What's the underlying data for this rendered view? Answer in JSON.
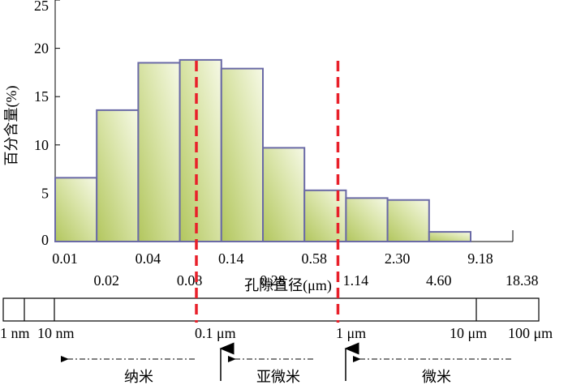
{
  "chart_data": {
    "type": "bar",
    "ylabel": "百分含量(%)",
    "xlabel": "孔隙直径(μm)",
    "ylim": [
      0,
      25
    ],
    "yticks": [
      "0",
      "5",
      "10",
      "15",
      "20",
      "25"
    ],
    "ytick_values": [
      0,
      5,
      10,
      15,
      20,
      25
    ],
    "x_tick_labels_upper": [
      "0.01",
      "0.04",
      "0.14",
      "0.58",
      "2.30",
      "9.18"
    ],
    "x_tick_labels_lower": [
      "0.02",
      "0.08",
      "0.28",
      "1.14",
      "4.60",
      "18.38"
    ],
    "values": [
      6.6,
      13.6,
      18.5,
      18.8,
      17.9,
      9.7,
      5.3,
      4.5,
      4.3,
      1.0
    ],
    "bar_colors": {
      "fill_dark": "#b2c65e",
      "fill_light": "#f6f9e6",
      "stroke": "#6a6aa6"
    },
    "reference_lines": [
      {
        "at": 0.1,
        "color": "#e8202a",
        "style": "dashed"
      },
      {
        "at": 1,
        "color": "#e8202a",
        "style": "dashed"
      }
    ]
  },
  "scale_bar": {
    "labels": [
      "1 nm",
      "10 nm",
      "0.1 μm",
      "1 μm",
      "10 μm",
      "100 μm"
    ],
    "ranges": [
      "纳米",
      "亚微米",
      "微米"
    ]
  }
}
